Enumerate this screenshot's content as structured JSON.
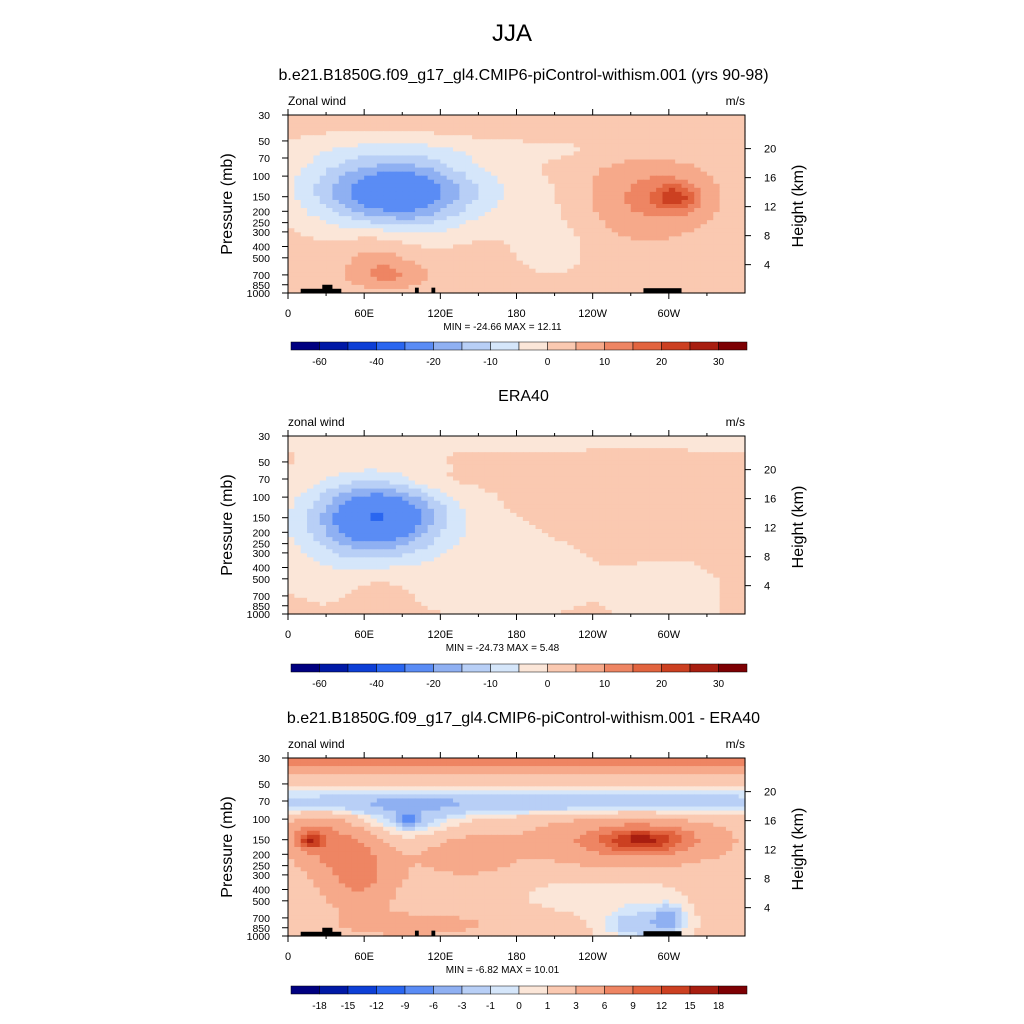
{
  "title": "JJA",
  "colors": {
    "full": [
      "#000080",
      "#0019a6",
      "#0d3fd6",
      "#2a66f0",
      "#5a8cf5",
      "#8fb0f2",
      "#b8cff6",
      "#d5e6fa",
      "#fbe6d8",
      "#fac9b1",
      "#f6a98a",
      "#ee8563",
      "#e2643f",
      "#cc4021",
      "#a81e10",
      "#7d0003"
    ],
    "diff": [
      "#000080",
      "#0019a6",
      "#0d3fd6",
      "#2a66f0",
      "#5a8cf5",
      "#8fb0f2",
      "#b8cff6",
      "#d5e6fa",
      "#fbe6d8",
      "#fac9b1",
      "#f6a98a",
      "#ee8563",
      "#e2643f",
      "#cc4021",
      "#a81e10",
      "#7d0003"
    ]
  },
  "chart_data": [
    {
      "type": "heatmap",
      "title": "b.e21.B1850G.f09_g17_gl4.CMIP6-piControl-withism.001 (yrs 90-98)",
      "left_label": "Zonal wind",
      "units": "m/s",
      "ylabel": "Pressure (mb)",
      "ylabel_right": "Height (km)",
      "stats": "MIN = -24.66  MAX =  12.11",
      "x_ticks": [
        "0",
        "60E",
        "120E",
        "180",
        "120W",
        "60W"
      ],
      "x_tick_values": [
        0,
        60,
        120,
        180,
        240,
        300
      ],
      "xlim": [
        0,
        360
      ],
      "y_ticks": [
        "30",
        "50",
        "70",
        "100",
        "150",
        "200",
        "250",
        "300",
        "400",
        "500",
        "700",
        "850",
        "1000"
      ],
      "y_tick_values": [
        30,
        50,
        70,
        100,
        150,
        200,
        250,
        300,
        400,
        500,
        700,
        850,
        1000
      ],
      "ylim": [
        30,
        1000
      ],
      "y_scale": "log",
      "height_ticks": [
        "20",
        "16",
        "12",
        "8",
        "4"
      ],
      "height_tick_values": [
        20,
        16,
        12,
        8,
        4
      ],
      "colorbar_labels": [
        "-60",
        "-40",
        "-20",
        "-10",
        "0",
        "10",
        "20",
        "30"
      ],
      "colorbar_label_positions": [
        1,
        3,
        5,
        7,
        9,
        11,
        13,
        15
      ],
      "palette": "full",
      "background_value": 2,
      "features": [
        {
          "lon": 90,
          "p": 140,
          "lon_w": 55,
          "logp_w": 0.32,
          "value": -25
        },
        {
          "lon": 35,
          "p": 120,
          "lon_w": 45,
          "logp_w": 0.35,
          "value": -6
        },
        {
          "lon": 140,
          "p": 130,
          "lon_w": 120,
          "logp_w": 0.25,
          "value": -4
        },
        {
          "lon": 210,
          "p": 350,
          "lon_w": 40,
          "logp_w": 0.35,
          "value": -4
        },
        {
          "lon": 180,
          "p": 60,
          "lon_w": 200,
          "logp_w": 0.1,
          "value": -3
        },
        {
          "lon": 280,
          "p": 150,
          "lon_w": 55,
          "logp_w": 0.35,
          "value": 10
        },
        {
          "lon": 305,
          "p": 150,
          "lon_w": 18,
          "logp_w": 0.12,
          "value": 14
        },
        {
          "lon": 70,
          "p": 450,
          "lon_w": 28,
          "logp_w": 0.25,
          "value": 5
        },
        {
          "lon": 80,
          "p": 700,
          "lon_w": 30,
          "logp_w": 0.12,
          "value": 7
        }
      ],
      "topography": [
        {
          "lon0": 10,
          "lon1": 42,
          "p": 920
        },
        {
          "lon0": 27,
          "lon1": 35,
          "p": 850
        },
        {
          "lon0": 100,
          "lon1": 103,
          "p": 900
        },
        {
          "lon0": 113,
          "lon1": 116,
          "p": 900
        },
        {
          "lon0": 280,
          "lon1": 310,
          "p": 910
        }
      ]
    },
    {
      "type": "heatmap",
      "title": "ERA40",
      "left_label": "zonal wind",
      "units": "m/s",
      "ylabel": "Pressure (mb)",
      "ylabel_right": "Height (km)",
      "stats": "MIN = -24.73  MAX =   5.48",
      "x_ticks": [
        "0",
        "60E",
        "120E",
        "180",
        "120W",
        "60W"
      ],
      "x_tick_values": [
        0,
        60,
        120,
        180,
        240,
        300
      ],
      "xlim": [
        0,
        360
      ],
      "y_ticks": [
        "30",
        "50",
        "70",
        "100",
        "150",
        "200",
        "250",
        "300",
        "400",
        "500",
        "700",
        "850",
        "1000"
      ],
      "y_tick_values": [
        30,
        50,
        70,
        100,
        150,
        200,
        250,
        300,
        400,
        500,
        700,
        850,
        1000
      ],
      "ylim": [
        30,
        1000
      ],
      "y_scale": "log",
      "height_ticks": [
        "20",
        "16",
        "12",
        "8",
        "4"
      ],
      "height_tick_values": [
        20,
        16,
        12,
        8,
        4
      ],
      "colorbar_labels": [
        "-60",
        "-40",
        "-20",
        "-10",
        "0",
        "10",
        "20",
        "30"
      ],
      "colorbar_label_positions": [
        1,
        3,
        5,
        7,
        9,
        11,
        13,
        15
      ],
      "palette": "full",
      "background_value": 1,
      "features": [
        {
          "lon": 75,
          "p": 145,
          "lon_w": 50,
          "logp_w": 0.3,
          "value": -25
        },
        {
          "lon": 50,
          "p": 200,
          "lon_w": 55,
          "logp_w": 0.45,
          "value": -8
        },
        {
          "lon": 180,
          "p": 30,
          "lon_w": 400,
          "logp_w": 0.1,
          "value": -6
        },
        {
          "lon": 170,
          "p": 400,
          "lon_w": 70,
          "logp_w": 0.45,
          "value": -3
        },
        {
          "lon": 300,
          "p": 700,
          "lon_w": 40,
          "logp_w": 0.3,
          "value": -3
        },
        {
          "lon": 265,
          "p": 110,
          "lon_w": 60,
          "logp_w": 0.3,
          "value": 4
        },
        {
          "lon": 110,
          "p": 75,
          "lon_w": 35,
          "logp_w": 0.1,
          "value": 3
        },
        {
          "lon": 70,
          "p": 600,
          "lon_w": 25,
          "logp_w": 0.2,
          "value": 3
        }
      ],
      "topography": []
    },
    {
      "type": "heatmap",
      "title": "b.e21.B1850G.f09_g17_gl4.CMIP6-piControl-withism.001 - ERA40",
      "left_label": "zonal wind",
      "units": "m/s",
      "ylabel": "Pressure (mb)",
      "ylabel_right": "Height (km)",
      "stats": "MIN =  -6.82  MAX =  10.01",
      "x_ticks": [
        "0",
        "60E",
        "120E",
        "180",
        "120W",
        "60W"
      ],
      "x_tick_values": [
        0,
        60,
        120,
        180,
        240,
        300
      ],
      "xlim": [
        0,
        360
      ],
      "y_ticks": [
        "30",
        "50",
        "70",
        "100",
        "150",
        "200",
        "250",
        "300",
        "400",
        "500",
        "700",
        "850",
        "1000"
      ],
      "y_tick_values": [
        30,
        50,
        70,
        100,
        150,
        200,
        250,
        300,
        400,
        500,
        700,
        850,
        1000
      ],
      "ylim": [
        30,
        1000
      ],
      "y_scale": "log",
      "height_ticks": [
        "20",
        "16",
        "12",
        "8",
        "4"
      ],
      "height_tick_values": [
        20,
        16,
        12,
        8,
        4
      ],
      "colorbar_labels": [
        "-18",
        "-15",
        "-12",
        "-9",
        "-6",
        "-3",
        "-1",
        "0",
        "1",
        "3",
        "6",
        "9",
        "12",
        "15",
        "18"
      ],
      "colorbar_label_positions": [
        1,
        2,
        3,
        4,
        5,
        6,
        7,
        8,
        9,
        10,
        11,
        12,
        13,
        14,
        15
      ],
      "palette": "diff",
      "background_value": 1.5,
      "features": [
        {
          "lon": 180,
          "p": 32,
          "lon_w": 400,
          "logp_w": 0.09,
          "value": 6
        },
        {
          "lon": 180,
          "p": 72,
          "lon_w": 400,
          "logp_w": 0.1,
          "value": -4
        },
        {
          "lon": 95,
          "p": 100,
          "lon_w": 40,
          "logp_w": 0.18,
          "value": -3
        },
        {
          "lon": 95,
          "p": 100,
          "lon_w": 8,
          "logp_w": 0.06,
          "value": -6
        },
        {
          "lon": 25,
          "p": 150,
          "lon_w": 30,
          "logp_w": 0.2,
          "value": 5
        },
        {
          "lon": 18,
          "p": 150,
          "lon_w": 10,
          "logp_w": 0.07,
          "value": 9
        },
        {
          "lon": 55,
          "p": 280,
          "lon_w": 30,
          "logp_w": 0.3,
          "value": 6
        },
        {
          "lon": 270,
          "p": 155,
          "lon_w": 70,
          "logp_w": 0.2,
          "value": 6
        },
        {
          "lon": 280,
          "p": 150,
          "lon_w": 30,
          "logp_w": 0.09,
          "value": 9
        },
        {
          "lon": 140,
          "p": 200,
          "lon_w": 40,
          "logp_w": 0.2,
          "value": 3
        },
        {
          "lon": 250,
          "p": 450,
          "lon_w": 60,
          "logp_w": 0.15,
          "value": -1.5
        },
        {
          "lon": 280,
          "p": 800,
          "lon_w": 30,
          "logp_w": 0.12,
          "value": -4
        },
        {
          "lon": 300,
          "p": 700,
          "lon_w": 10,
          "logp_w": 0.1,
          "value": -5
        },
        {
          "lon": 100,
          "p": 800,
          "lon_w": 60,
          "logp_w": 0.1,
          "value": 3
        }
      ],
      "topography": [
        {
          "lon0": 10,
          "lon1": 42,
          "p": 920
        },
        {
          "lon0": 27,
          "lon1": 35,
          "p": 850
        },
        {
          "lon0": 100,
          "lon1": 103,
          "p": 900
        },
        {
          "lon0": 113,
          "lon1": 116,
          "p": 900
        },
        {
          "lon0": 280,
          "lon1": 310,
          "p": 910
        }
      ]
    }
  ]
}
